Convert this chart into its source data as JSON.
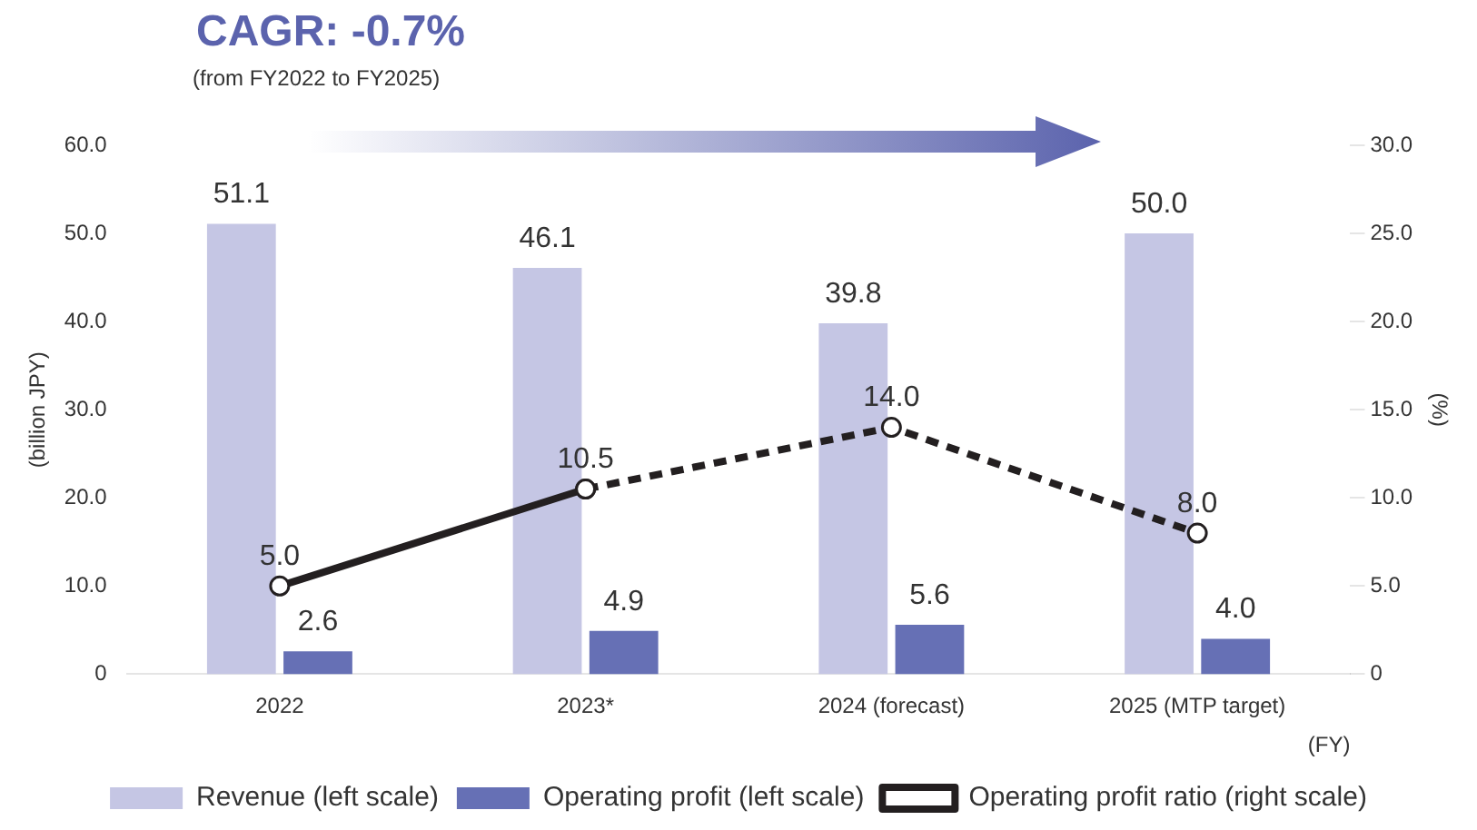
{
  "chart_data": {
    "type": "bar",
    "categories": [
      "2022",
      "2023*",
      "2024 (forecast)",
      "2025 (MTP target)"
    ],
    "xlabel": "(FY)",
    "ylabel": "(billion JPY)",
    "y2label": "(%)",
    "series": [
      {
        "name": "Revenue (left scale)",
        "color": "#c5c6e4",
        "values": [
          51.1,
          46.1,
          39.8,
          50.0
        ],
        "value_labels": [
          "51.1",
          "46.1",
          "39.8",
          "50.0"
        ]
      },
      {
        "name": "Operating profit (left scale)",
        "color": "#6670b5",
        "values": [
          2.6,
          4.9,
          5.6,
          4.0
        ],
        "value_labels": [
          "2.6",
          "4.9",
          "5.6",
          "4.0"
        ]
      },
      {
        "name": "Operating profit ratio (right scale)",
        "type": "line",
        "axis": "y2",
        "color": "#231f20",
        "line_style": "solid",
        "marker": "circle",
        "values": [
          5.0,
          10.5,
          null,
          null
        ],
        "value_labels": [
          "5.0",
          "10.5",
          null,
          null
        ]
      },
      {
        "type": "line",
        "axis": "y2",
        "color": "#231f20",
        "line_style": "dashed",
        "marker": "circle",
        "values": [
          null,
          10.5,
          14.0,
          8.0
        ],
        "value_labels": [
          null,
          null,
          "14.0",
          "8.0"
        ]
      }
    ],
    "ylim": [
      0,
      60
    ],
    "yticks": [
      0,
      {
        "value": 10,
        "label": "10.0"
      },
      {
        "value": 20,
        "label": "20.0"
      },
      {
        "value": 30,
        "label": "30.0"
      },
      {
        "value": 40,
        "label": "40.0"
      },
      {
        "value": 50,
        "label": "50.0"
      },
      {
        "value": 60,
        "label": "60.0"
      }
    ],
    "y2lim": [
      0,
      30
    ],
    "y2ticks": [
      0,
      {
        "value": 5,
        "label": "5.0"
      },
      {
        "value": 10,
        "label": "10.0"
      },
      {
        "value": 15,
        "label": "15.0"
      },
      {
        "value": 20,
        "label": "20.0"
      },
      {
        "value": 25,
        "label": "25.0"
      },
      {
        "value": 30,
        "label": "30.0"
      }
    ],
    "annotations": [
      "CAGR: -0.7%",
      "(from FY2022 to FY2025)"
    ],
    "grid": false,
    "legend": "bottom"
  }
}
